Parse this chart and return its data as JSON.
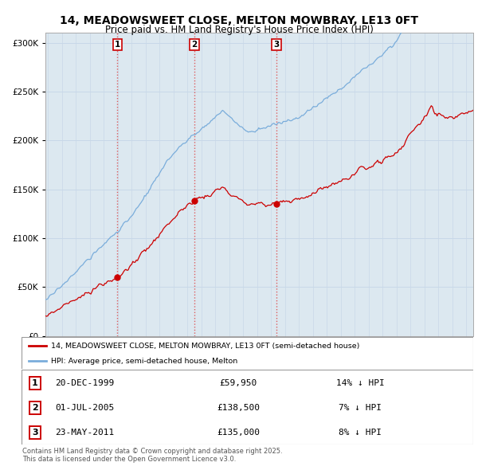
{
  "title": "14, MEADOWSWEET CLOSE, MELTON MOWBRAY, LE13 0FT",
  "subtitle": "Price paid vs. HM Land Registry's House Price Index (HPI)",
  "legend_label_red": "14, MEADOWSWEET CLOSE, MELTON MOWBRAY, LE13 0FT (semi-detached house)",
  "legend_label_blue": "HPI: Average price, semi-detached house, Melton",
  "transactions": [
    {
      "num": 1,
      "date": "20-DEC-1999",
      "price": 59950,
      "hpi_diff": "14% ↓ HPI",
      "year": 1999.97
    },
    {
      "num": 2,
      "date": "01-JUL-2005",
      "price": 138500,
      "hpi_diff": "7% ↓ HPI",
      "year": 2005.5
    },
    {
      "num": 3,
      "date": "23-MAY-2011",
      "price": 135000,
      "hpi_diff": "8% ↓ HPI",
      "year": 2011.39
    }
  ],
  "footer": "Contains HM Land Registry data © Crown copyright and database right 2025.\nThis data is licensed under the Open Government Licence v3.0.",
  "ylim": [
    0,
    310000
  ],
  "xlim_start": 1994.8,
  "xlim_end": 2025.5,
  "red_color": "#cc0000",
  "blue_color": "#7aaddb",
  "dotted_color": "#dd4444",
  "grid_color": "#c8d8e8",
  "bg_color": "#ffffff",
  "plot_bg_color": "#dce8f0"
}
